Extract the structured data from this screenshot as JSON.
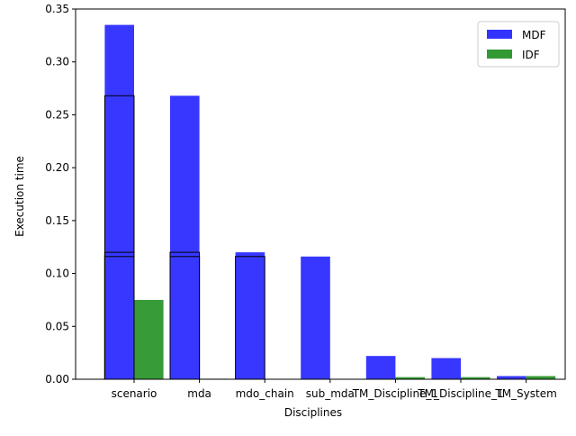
{
  "chart_data": {
    "type": "bar",
    "xlabel": "Disciplines",
    "ylabel": "Execution time",
    "categories": [
      "scenario",
      "mda",
      "mdo_chain",
      "sub_mda",
      "TM_Discipline_1",
      "TM_Discipline_1",
      "TM_System"
    ],
    "ylim": [
      0,
      0.35
    ],
    "yticks": [
      "0.00",
      "0.05",
      "0.10",
      "0.15",
      "0.20",
      "0.25",
      "0.30",
      "0.35"
    ],
    "series": [
      {
        "name": "MDF",
        "color": "#3333ff",
        "values": [
          0.335,
          0.268,
          0.12,
          0.116,
          0.022,
          0.02,
          0.003
        ]
      },
      {
        "name": "IDF",
        "color": "#339933",
        "values": [
          0.075,
          0.0005,
          0.0003,
          0.0,
          0.002,
          0.002,
          0.003
        ]
      }
    ],
    "outline_boxes": [
      {
        "category_index": 0,
        "values": [
          0.268,
          0.12,
          0.116
        ]
      },
      {
        "category_index": 1,
        "values": [
          0.12,
          0.116
        ]
      },
      {
        "category_index": 2,
        "values": [
          0.116
        ]
      }
    ],
    "legend": {
      "position": "top-right",
      "entries": [
        "MDF",
        "IDF"
      ]
    },
    "grid": false
  }
}
